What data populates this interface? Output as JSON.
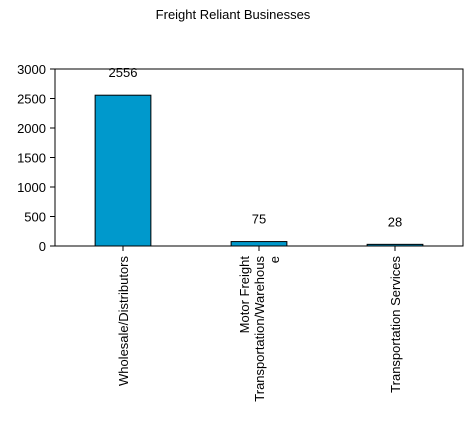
{
  "chart_data": {
    "type": "bar",
    "title": "Freight Reliant Businesses",
    "xlabel": "",
    "ylabel": "",
    "categories": [
      [
        "Wholesale/Distributors"
      ],
      [
        "Motor Freight",
        "Transportation/Warehous",
        "e"
      ],
      [
        "Transportation Services"
      ]
    ],
    "values": [
      2556,
      75,
      28
    ],
    "data_labels": [
      "2556",
      "75",
      "28"
    ],
    "ylim": [
      0,
      3000
    ],
    "yticks": [
      0,
      500,
      1000,
      1500,
      2000,
      2500,
      3000
    ],
    "ytick_labels": [
      "0",
      "500",
      "1000",
      "1500",
      "2000",
      "2500",
      "3000"
    ],
    "grid": false,
    "legend": "none",
    "colors": {
      "bar": "#0099CC",
      "bar_edge": "#000000",
      "axis": "#000000"
    }
  }
}
